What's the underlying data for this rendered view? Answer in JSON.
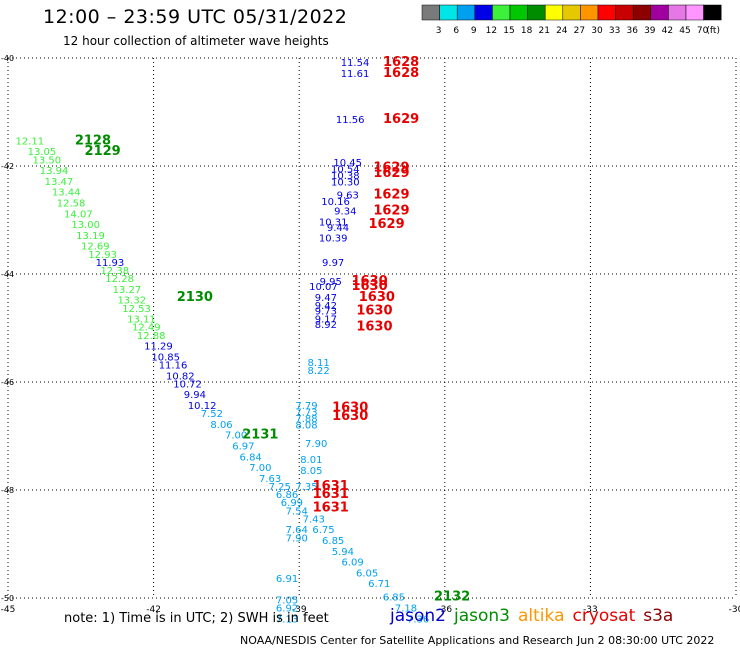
{
  "header": {
    "title": "12:00 – 23:59 UTC 05/31/2022",
    "subtitle": "12 hour collection of altimeter wave heights"
  },
  "color_scale": {
    "unit": "(ft)",
    "bins": [
      {
        "label": "3",
        "color": "#7a7a7a"
      },
      {
        "label": "6",
        "color": "#00e6e6"
      },
      {
        "label": "9",
        "color": "#00a0f0"
      },
      {
        "label": "12",
        "color": "#0000e6"
      },
      {
        "label": "15",
        "color": "#3cf03c"
      },
      {
        "label": "18",
        "color": "#00c800"
      },
      {
        "label": "21",
        "color": "#008c00"
      },
      {
        "label": "24",
        "color": "#ffff00"
      },
      {
        "label": "27",
        "color": "#e6c800"
      },
      {
        "label": "30",
        "color": "#ff9600"
      },
      {
        "label": "33",
        "color": "#ff0000"
      },
      {
        "label": "36",
        "color": "#c80000"
      },
      {
        "label": "39",
        "color": "#8c0000"
      },
      {
        "label": "42",
        "color": "#a000a0"
      },
      {
        "label": "45",
        "color": "#e678e6"
      },
      {
        "label": "70",
        "color": "#ff96ff"
      },
      {
        "label": "",
        "color": "#000000"
      }
    ]
  },
  "map_data": {
    "lat_range": [
      -50,
      -40
    ],
    "lon_range": [
      -45,
      -30
    ],
    "lat_ticks": [
      {
        "label": "-40",
        "lat": -40
      },
      {
        "label": "-42",
        "lat": -42
      },
      {
        "label": "-44",
        "lat": -44
      },
      {
        "label": "-46",
        "lat": -46
      },
      {
        "label": "-48",
        "lat": -48
      },
      {
        "label": "-50",
        "lat": -50
      }
    ],
    "lon_ticks": [
      {
        "label": "-45",
        "lon": -45
      },
      {
        "label": "-42",
        "lon": -42
      },
      {
        "label": "-39",
        "lon": -39
      },
      {
        "label": "-36",
        "lon": -36
      },
      {
        "label": "-33",
        "lon": -33
      },
      {
        "label": "-30",
        "lon": -30
      }
    ],
    "grid": "dotted",
    "obs": [
      {
        "text": "12.11",
        "lon": -44.55,
        "lat": -41.6,
        "c": "#3cf03c"
      },
      {
        "text": "13.05",
        "lon": -44.3,
        "lat": -41.8,
        "c": "#3cf03c"
      },
      {
        "text": "13.50",
        "lon": -44.2,
        "lat": -41.95,
        "c": "#3cf03c"
      },
      {
        "text": "13.94",
        "lon": -44.05,
        "lat": -42.15,
        "c": "#3cf03c"
      },
      {
        "text": "13.47",
        "lon": -43.95,
        "lat": -42.35,
        "c": "#3cf03c"
      },
      {
        "text": "13.44",
        "lon": -43.8,
        "lat": -42.55,
        "c": "#3cf03c"
      },
      {
        "text": "12.58",
        "lon": -43.7,
        "lat": -42.75,
        "c": "#3cf03c"
      },
      {
        "text": "14.07",
        "lon": -43.55,
        "lat": -42.95,
        "c": "#3cf03c"
      },
      {
        "text": "13.00",
        "lon": -43.4,
        "lat": -43.15,
        "c": "#3cf03c"
      },
      {
        "text": "13.19",
        "lon": -43.3,
        "lat": -43.35,
        "c": "#3cf03c"
      },
      {
        "text": "12.69",
        "lon": -43.2,
        "lat": -43.55,
        "c": "#3cf03c"
      },
      {
        "text": "12.93",
        "lon": -43.05,
        "lat": -43.7,
        "c": "#3cf03c"
      },
      {
        "text": "11.93",
        "lon": -42.9,
        "lat": -43.85,
        "c": "#0000e6"
      },
      {
        "text": "12.38",
        "lon": -42.8,
        "lat": -44.0,
        "c": "#3cf03c"
      },
      {
        "text": "12.28",
        "lon": -42.7,
        "lat": -44.15,
        "c": "#3cf03c"
      },
      {
        "text": "13.27",
        "lon": -42.55,
        "lat": -44.35,
        "c": "#3cf03c"
      },
      {
        "text": "13.32",
        "lon": -42.45,
        "lat": -44.55,
        "c": "#3cf03c"
      },
      {
        "text": "12.53",
        "lon": -42.35,
        "lat": -44.7,
        "c": "#3cf03c"
      },
      {
        "text": "13.11",
        "lon": -42.25,
        "lat": -44.9,
        "c": "#3cf03c"
      },
      {
        "text": "12.49",
        "lon": -42.15,
        "lat": -45.05,
        "c": "#3cf03c"
      },
      {
        "text": "12.88",
        "lon": -42.05,
        "lat": -45.2,
        "c": "#3cf03c"
      },
      {
        "text": "11.29",
        "lon": -41.9,
        "lat": -45.4,
        "c": "#0000e6"
      },
      {
        "text": "10.85",
        "lon": -41.75,
        "lat": -45.6,
        "c": "#0000e6"
      },
      {
        "text": "11.16",
        "lon": -41.6,
        "lat": -45.75,
        "c": "#0000e6"
      },
      {
        "text": "10.82",
        "lon": -41.45,
        "lat": -45.95,
        "c": "#0000e6"
      },
      {
        "text": "10.72",
        "lon": -41.3,
        "lat": -46.1,
        "c": "#0000e6"
      },
      {
        "text": "9.94",
        "lon": -41.15,
        "lat": -46.3,
        "c": "#0000e6"
      },
      {
        "text": "10.12",
        "lon": -41.0,
        "lat": -46.5,
        "c": "#0000e6"
      },
      {
        "text": "7.52",
        "lon": -40.8,
        "lat": -46.65,
        "c": "#00a0f0"
      },
      {
        "text": "8.06",
        "lon": -40.6,
        "lat": -46.85,
        "c": "#00a0f0"
      },
      {
        "text": "7.00",
        "lon": -40.3,
        "lat": -47.05,
        "c": "#00a0f0"
      },
      {
        "text": "6.97",
        "lon": -40.15,
        "lat": -47.25,
        "c": "#00a0f0"
      },
      {
        "text": "6.84",
        "lon": -40.0,
        "lat": -47.45,
        "c": "#00a0f0"
      },
      {
        "text": "7.00",
        "lon": -39.8,
        "lat": -47.65,
        "c": "#00a0f0"
      },
      {
        "text": "7.63",
        "lon": -39.6,
        "lat": -47.85,
        "c": "#00a0f0"
      },
      {
        "text": "7.25",
        "lon": -39.4,
        "lat": -48.0,
        "c": "#00a0f0"
      },
      {
        "text": "6.86",
        "lon": -39.25,
        "lat": -48.15,
        "c": "#00a0f0"
      },
      {
        "text": "6.99",
        "lon": -39.15,
        "lat": -48.3,
        "c": "#00a0f0"
      },
      {
        "text": "7.54",
        "lon": -39.05,
        "lat": -48.45,
        "c": "#00a0f0"
      },
      {
        "text": "7.43",
        "lon": -38.7,
        "lat": -48.6,
        "c": "#00a0f0"
      },
      {
        "text": "6.75",
        "lon": -38.5,
        "lat": -48.8,
        "c": "#00a0f0"
      },
      {
        "text": "7.64",
        "lon": -39.05,
        "lat": -48.8,
        "c": "#00a0f0"
      },
      {
        "text": "7.90",
        "lon": -39.05,
        "lat": -48.95,
        "c": "#00a0f0"
      },
      {
        "text": "6.85",
        "lon": -38.3,
        "lat": -49.0,
        "c": "#00a0f0"
      },
      {
        "text": "5.94",
        "lon": -38.1,
        "lat": -49.2,
        "c": "#00a0f0"
      },
      {
        "text": "6.09",
        "lon": -37.9,
        "lat": -49.4,
        "c": "#00a0f0"
      },
      {
        "text": "6.05",
        "lon": -37.6,
        "lat": -49.6,
        "c": "#00a0f0"
      },
      {
        "text": "6.71",
        "lon": -37.35,
        "lat": -49.8,
        "c": "#00a0f0"
      },
      {
        "text": "6.85",
        "lon": -37.05,
        "lat": -50.05,
        "c": "#00a0f0"
      },
      {
        "text": "7.18",
        "lon": -36.8,
        "lat": -50.25,
        "c": "#00a0f0"
      },
      {
        "text": "7.36",
        "lon": -36.55,
        "lat": -50.45,
        "c": "#00a0f0"
      },
      {
        "text": "6.91",
        "lon": -39.25,
        "lat": -49.7,
        "c": "#00a0f0"
      },
      {
        "text": "7.05",
        "lon": -39.25,
        "lat": -50.1,
        "c": "#00a0f0"
      },
      {
        "text": "6.92",
        "lon": -39.25,
        "lat": -50.25,
        "c": "#00a0f0"
      },
      {
        "text": "7.13",
        "lon": -39.25,
        "lat": -50.45,
        "c": "#00a0f0"
      },
      {
        "text": "7.35",
        "lon": -38.85,
        "lat": -48.0,
        "c": "#00a0f0"
      },
      {
        "text": "7.90",
        "lon": -38.65,
        "lat": -47.2,
        "c": "#00a0f0"
      },
      {
        "text": "8.01",
        "lon": -38.75,
        "lat": -47.5,
        "c": "#00a0f0"
      },
      {
        "text": "8.05",
        "lon": -38.75,
        "lat": -47.7,
        "c": "#00a0f0"
      },
      {
        "text": "7.79",
        "lon": -38.85,
        "lat": -46.5,
        "c": "#00a0f0"
      },
      {
        "text": "7.73",
        "lon": -38.85,
        "lat": -46.62,
        "c": "#00a0f0"
      },
      {
        "text": "7.88",
        "lon": -38.85,
        "lat": -46.74,
        "c": "#00a0f0"
      },
      {
        "text": "8.08",
        "lon": -38.85,
        "lat": -46.86,
        "c": "#00a0f0"
      },
      {
        "text": "8.11",
        "lon": -38.6,
        "lat": -45.7,
        "c": "#00a0f0"
      },
      {
        "text": "8.22",
        "lon": -38.6,
        "lat": -45.85,
        "c": "#00a0f0"
      },
      {
        "text": "11.54",
        "lon": -37.85,
        "lat": -40.15,
        "c": "#0000e6"
      },
      {
        "text": "11.61",
        "lon": -37.85,
        "lat": -40.35,
        "c": "#0000e6"
      },
      {
        "text": "11.56",
        "lon": -37.95,
        "lat": -41.2,
        "c": "#0000e6"
      },
      {
        "text": "10.45",
        "lon": -38.0,
        "lat": -42.0,
        "c": "#0000e6"
      },
      {
        "text": "10.54",
        "lon": -38.05,
        "lat": -42.12,
        "c": "#0000e6"
      },
      {
        "text": "10.38",
        "lon": -38.05,
        "lat": -42.24,
        "c": "#0000e6"
      },
      {
        "text": "10.30",
        "lon": -38.05,
        "lat": -42.36,
        "c": "#0000e6"
      },
      {
        "text": "9.63",
        "lon": -38.0,
        "lat": -42.6,
        "c": "#0000e6"
      },
      {
        "text": "10.16",
        "lon": -38.25,
        "lat": -42.72,
        "c": "#0000e6"
      },
      {
        "text": "9.34",
        "lon": -38.05,
        "lat": -42.9,
        "c": "#0000e6"
      },
      {
        "text": "10.31",
        "lon": -38.3,
        "lat": -43.1,
        "c": "#0000e6"
      },
      {
        "text": "9.44",
        "lon": -38.2,
        "lat": -43.2,
        "c": "#0000e6"
      },
      {
        "text": "10.39",
        "lon": -38.3,
        "lat": -43.4,
        "c": "#0000e6"
      },
      {
        "text": "9.97",
        "lon": -38.3,
        "lat": -43.85,
        "c": "#0000e6"
      },
      {
        "text": "9.95",
        "lon": -38.35,
        "lat": -44.2,
        "c": "#0000e6"
      },
      {
        "text": "10.07",
        "lon": -38.5,
        "lat": -44.3,
        "c": "#0000e6"
      },
      {
        "text": "9.47",
        "lon": -38.45,
        "lat": -44.5,
        "c": "#0000e6"
      },
      {
        "text": "9.42",
        "lon": -38.45,
        "lat": -44.65,
        "c": "#0000e6"
      },
      {
        "text": "9.73",
        "lon": -38.45,
        "lat": -44.75,
        "c": "#0000e6"
      },
      {
        "text": "9.17",
        "lon": -38.45,
        "lat": -44.9,
        "c": "#0000e6"
      },
      {
        "text": "8.92",
        "lon": -38.45,
        "lat": -45.0,
        "c": "#0000e6"
      }
    ],
    "cycles": [
      {
        "text": "2128",
        "lon": -43.25,
        "lat": -41.6,
        "c": "#008c00"
      },
      {
        "text": "2129",
        "lon": -43.05,
        "lat": -41.8,
        "c": "#008c00"
      },
      {
        "text": "2130",
        "lon": -41.15,
        "lat": -44.5,
        "c": "#008c00"
      },
      {
        "text": "2131",
        "lon": -39.8,
        "lat": -47.05,
        "c": "#008c00"
      },
      {
        "text": "2132",
        "lon": -35.85,
        "lat": -50.05,
        "c": "#008c00"
      },
      {
        "text": "1628",
        "lon": -36.9,
        "lat": -40.15,
        "c": "#e60000"
      },
      {
        "text": "1628",
        "lon": -36.9,
        "lat": -40.35,
        "c": "#e60000"
      },
      {
        "text": "1629",
        "lon": -36.9,
        "lat": -41.2,
        "c": "#e60000"
      },
      {
        "text": "1629",
        "lon": -37.1,
        "lat": -42.1,
        "c": "#e60000"
      },
      {
        "text": "1629",
        "lon": -37.1,
        "lat": -42.2,
        "c": "#e60000"
      },
      {
        "text": "1629",
        "lon": -37.1,
        "lat": -42.6,
        "c": "#e60000"
      },
      {
        "text": "1629",
        "lon": -37.1,
        "lat": -42.9,
        "c": "#e60000"
      },
      {
        "text": "1629",
        "lon": -37.2,
        "lat": -43.15,
        "c": "#e60000"
      },
      {
        "text": "1630",
        "lon": -37.55,
        "lat": -44.2,
        "c": "#e60000"
      },
      {
        "text": "1630",
        "lon": -37.55,
        "lat": -44.3,
        "c": "#e60000"
      },
      {
        "text": "1630",
        "lon": -37.4,
        "lat": -44.5,
        "c": "#e60000"
      },
      {
        "text": "1630",
        "lon": -37.45,
        "lat": -44.75,
        "c": "#e60000"
      },
      {
        "text": "1630",
        "lon": -37.45,
        "lat": -45.05,
        "c": "#e60000"
      },
      {
        "text": "1630",
        "lon": -37.95,
        "lat": -46.55,
        "c": "#e60000"
      },
      {
        "text": "1630",
        "lon": -37.95,
        "lat": -46.7,
        "c": "#e60000"
      },
      {
        "text": "1631",
        "lon": -38.35,
        "lat": -48.0,
        "c": "#e60000"
      },
      {
        "text": "1631",
        "lon": -38.35,
        "lat": -48.15,
        "c": "#e60000"
      },
      {
        "text": "1631",
        "lon": -38.35,
        "lat": -48.4,
        "c": "#e60000"
      }
    ]
  },
  "note": "note:  1) Time is in UTC; 2) SWH is in feet",
  "legend": [
    {
      "label": "jason2",
      "color": "#0000c8"
    },
    {
      "label": "jason3",
      "color": "#008c00"
    },
    {
      "label": "altika",
      "color": "#ff9600"
    },
    {
      "label": "cryosat",
      "color": "#e60000"
    },
    {
      "label": "s3a",
      "color": "#8c0000"
    }
  ],
  "footer": {
    "credit": "NOAA/NESDIS Center for Satellite Applications and Research",
    "timestamp": "Jun  2 08:30:00 UTC 2022"
  }
}
